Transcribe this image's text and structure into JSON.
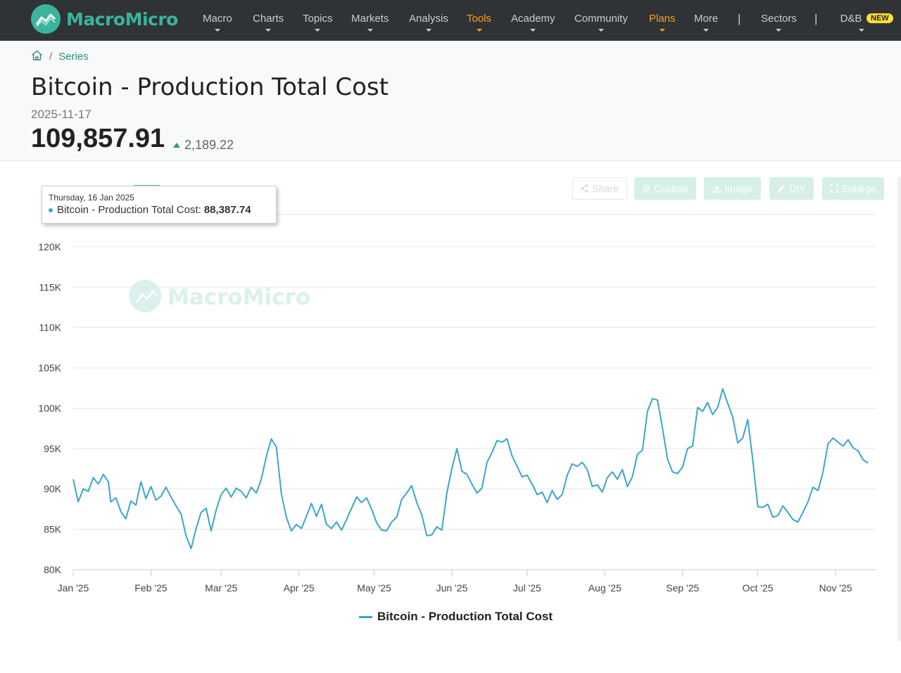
{
  "brand": {
    "name": "MacroMicro"
  },
  "nav": {
    "items": [
      {
        "label": "Macro",
        "caret": true,
        "highlight": false
      },
      {
        "label": "Charts",
        "caret": true,
        "highlight": false
      },
      {
        "label": "Topics",
        "caret": true,
        "highlight": false
      },
      {
        "label": "Markets",
        "caret": true,
        "highlight": false
      },
      {
        "label": "Analysis",
        "caret": true,
        "highlight": false
      },
      {
        "label": "Tools",
        "caret": true,
        "highlight": true
      },
      {
        "label": "Academy",
        "caret": true,
        "highlight": false
      },
      {
        "label": "Community",
        "caret": true,
        "highlight": false
      },
      {
        "label": "Plans",
        "caret": true,
        "highlight": true
      },
      {
        "label": "More",
        "caret": true,
        "highlight": false
      },
      {
        "label": "Sectors",
        "caret": true,
        "highlight": false
      },
      {
        "label": "D&B",
        "caret": true,
        "highlight": false
      }
    ],
    "separator": "|",
    "new_badge": "NEW",
    "highlight_color": "#ff9f1a"
  },
  "breadcrumb": {
    "separator": "/",
    "series_label": "Series"
  },
  "series": {
    "title": "Bitcoin - Production Total Cost",
    "date": "2025-11-17",
    "value": "109,857.91",
    "change": "2,189.22",
    "change_direction": "up"
  },
  "toolbar": {
    "share": "Share",
    "custom": "Custom",
    "image": "Image",
    "diy": "DIY",
    "enlarge": "Enlarge"
  },
  "tooltip": {
    "date": "Thursday, 16 Jan 2025",
    "series_label": "Bitcoin - Production Total Cost:",
    "value": "88,387.74"
  },
  "watermark": "MacroMicro",
  "chart_data": {
    "type": "line",
    "x_start": "2025-01-01",
    "x_end": "2025-11-17",
    "x_tick_labels": [
      "Jan '25",
      "Feb '25",
      "Mar '25",
      "Apr '25",
      "May '25",
      "Jun '25",
      "Jul '25",
      "Aug '25",
      "Sep '25",
      "Oct '25",
      "Nov '25"
    ],
    "y_tick_labels": [
      "80K",
      "85K",
      "90K",
      "95K",
      "100K",
      "105K",
      "110K",
      "115K",
      "120K"
    ],
    "ylim": [
      80000,
      124000
    ],
    "grid": true,
    "legend_position": "bottom",
    "color": "#3aa7c9",
    "series": [
      {
        "name": "Bitcoin - Production Total Cost",
        "points": [
          [
            "2025-01-01",
            91200
          ],
          [
            "2025-01-03",
            88400
          ],
          [
            "2025-01-05",
            90000
          ],
          [
            "2025-01-07",
            89700
          ],
          [
            "2025-01-09",
            91400
          ],
          [
            "2025-01-11",
            90600
          ],
          [
            "2025-01-13",
            91800
          ],
          [
            "2025-01-15",
            90900
          ],
          [
            "2025-01-16",
            88400
          ],
          [
            "2025-01-18",
            88900
          ],
          [
            "2025-01-20",
            87200
          ],
          [
            "2025-01-22",
            86300
          ],
          [
            "2025-01-24",
            88500
          ],
          [
            "2025-01-26",
            88000
          ],
          [
            "2025-01-28",
            90900
          ],
          [
            "2025-01-30",
            88800
          ],
          [
            "2025-02-01",
            90300
          ],
          [
            "2025-02-03",
            88600
          ],
          [
            "2025-02-05",
            89100
          ],
          [
            "2025-02-07",
            90200
          ],
          [
            "2025-02-09",
            89000
          ],
          [
            "2025-02-11",
            87900
          ],
          [
            "2025-02-13",
            86900
          ],
          [
            "2025-02-15",
            84200
          ],
          [
            "2025-02-17",
            82600
          ],
          [
            "2025-02-19",
            85100
          ],
          [
            "2025-02-21",
            87100
          ],
          [
            "2025-02-23",
            87600
          ],
          [
            "2025-02-25",
            84800
          ],
          [
            "2025-02-27",
            87400
          ],
          [
            "2025-03-01",
            89300
          ],
          [
            "2025-03-03",
            90100
          ],
          [
            "2025-03-05",
            89000
          ],
          [
            "2025-03-07",
            90100
          ],
          [
            "2025-03-09",
            89700
          ],
          [
            "2025-03-11",
            88900
          ],
          [
            "2025-03-13",
            90200
          ],
          [
            "2025-03-15",
            89500
          ],
          [
            "2025-03-17",
            91200
          ],
          [
            "2025-03-19",
            94000
          ],
          [
            "2025-03-21",
            96200
          ],
          [
            "2025-03-23",
            95200
          ],
          [
            "2025-03-25",
            89400
          ],
          [
            "2025-03-27",
            86500
          ],
          [
            "2025-03-29",
            84800
          ],
          [
            "2025-03-31",
            85600
          ],
          [
            "2025-04-02",
            85100
          ],
          [
            "2025-04-04",
            86600
          ],
          [
            "2025-04-06",
            88200
          ],
          [
            "2025-04-08",
            86600
          ],
          [
            "2025-04-10",
            88100
          ],
          [
            "2025-04-12",
            85600
          ],
          [
            "2025-04-14",
            85100
          ],
          [
            "2025-04-16",
            85900
          ],
          [
            "2025-04-18",
            84900
          ],
          [
            "2025-04-20",
            86200
          ],
          [
            "2025-04-22",
            87600
          ],
          [
            "2025-04-24",
            89000
          ],
          [
            "2025-04-26",
            88300
          ],
          [
            "2025-04-28",
            88900
          ],
          [
            "2025-04-30",
            87500
          ],
          [
            "2025-05-02",
            85800
          ],
          [
            "2025-05-04",
            84900
          ],
          [
            "2025-05-06",
            84800
          ],
          [
            "2025-05-08",
            85900
          ],
          [
            "2025-05-10",
            86500
          ],
          [
            "2025-05-12",
            88700
          ],
          [
            "2025-05-14",
            89500
          ],
          [
            "2025-05-16",
            90400
          ],
          [
            "2025-05-18",
            88300
          ],
          [
            "2025-05-20",
            86800
          ],
          [
            "2025-05-22",
            84200
          ],
          [
            "2025-05-24",
            84300
          ],
          [
            "2025-05-26",
            85300
          ],
          [
            "2025-05-28",
            84900
          ],
          [
            "2025-05-30",
            89500
          ],
          [
            "2025-06-01",
            92500
          ],
          [
            "2025-06-03",
            95000
          ],
          [
            "2025-06-05",
            92200
          ],
          [
            "2025-06-07",
            91800
          ],
          [
            "2025-06-09",
            90600
          ],
          [
            "2025-06-11",
            89500
          ],
          [
            "2025-06-13",
            90100
          ],
          [
            "2025-06-15",
            93300
          ],
          [
            "2025-06-17",
            94500
          ],
          [
            "2025-06-19",
            96000
          ],
          [
            "2025-06-21",
            95800
          ],
          [
            "2025-06-23",
            96200
          ],
          [
            "2025-06-25",
            94100
          ],
          [
            "2025-06-27",
            92800
          ],
          [
            "2025-06-29",
            91500
          ],
          [
            "2025-07-01",
            91700
          ],
          [
            "2025-07-03",
            90600
          ],
          [
            "2025-07-05",
            89300
          ],
          [
            "2025-07-07",
            89600
          ],
          [
            "2025-07-09",
            88300
          ],
          [
            "2025-07-11",
            89800
          ],
          [
            "2025-07-13",
            88700
          ],
          [
            "2025-07-15",
            89300
          ],
          [
            "2025-07-17",
            91700
          ],
          [
            "2025-07-19",
            93100
          ],
          [
            "2025-07-21",
            92800
          ],
          [
            "2025-07-23",
            93300
          ],
          [
            "2025-07-25",
            92400
          ],
          [
            "2025-07-27",
            90300
          ],
          [
            "2025-07-29",
            90500
          ],
          [
            "2025-07-31",
            89600
          ],
          [
            "2025-08-02",
            91400
          ],
          [
            "2025-08-04",
            92100
          ],
          [
            "2025-08-06",
            91200
          ],
          [
            "2025-08-08",
            92400
          ],
          [
            "2025-08-10",
            90300
          ],
          [
            "2025-08-12",
            91500
          ],
          [
            "2025-08-14",
            94300
          ],
          [
            "2025-08-16",
            94800
          ],
          [
            "2025-08-18",
            99600
          ],
          [
            "2025-08-20",
            101200
          ],
          [
            "2025-08-22",
            101000
          ],
          [
            "2025-08-24",
            97500
          ],
          [
            "2025-08-26",
            93700
          ],
          [
            "2025-08-28",
            92100
          ],
          [
            "2025-08-30",
            91900
          ],
          [
            "2025-09-01",
            92700
          ],
          [
            "2025-09-03",
            95000
          ],
          [
            "2025-09-05",
            95300
          ],
          [
            "2025-09-07",
            100100
          ],
          [
            "2025-09-09",
            99600
          ],
          [
            "2025-09-11",
            100700
          ],
          [
            "2025-09-13",
            99200
          ],
          [
            "2025-09-15",
            100100
          ],
          [
            "2025-09-17",
            102400
          ],
          [
            "2025-09-19",
            100600
          ],
          [
            "2025-09-21",
            98900
          ],
          [
            "2025-09-23",
            95700
          ],
          [
            "2025-09-25",
            96300
          ],
          [
            "2025-09-27",
            98600
          ],
          [
            "2025-09-29",
            93600
          ],
          [
            "2025-10-01",
            87800
          ],
          [
            "2025-10-03",
            87700
          ],
          [
            "2025-10-05",
            88100
          ],
          [
            "2025-10-07",
            86500
          ],
          [
            "2025-10-09",
            86700
          ],
          [
            "2025-10-11",
            87900
          ],
          [
            "2025-10-13",
            87100
          ],
          [
            "2025-10-15",
            86200
          ],
          [
            "2025-10-17",
            85900
          ],
          [
            "2025-10-19",
            87100
          ],
          [
            "2025-10-21",
            88400
          ],
          [
            "2025-10-23",
            90200
          ],
          [
            "2025-10-25",
            89800
          ],
          [
            "2025-10-27",
            92100
          ],
          [
            "2025-10-29",
            95600
          ],
          [
            "2025-10-31",
            96300
          ],
          [
            "2025-11-02",
            95800
          ],
          [
            "2025-11-04",
            95300
          ],
          [
            "2025-11-06",
            96100
          ],
          [
            "2025-11-08",
            95100
          ],
          [
            "2025-11-10",
            94700
          ],
          [
            "2025-11-12",
            93600
          ],
          [
            "2025-11-14",
            93200
          ]
        ]
      }
    ]
  },
  "legend": {
    "label": "Bitcoin - Production Total Cost"
  }
}
